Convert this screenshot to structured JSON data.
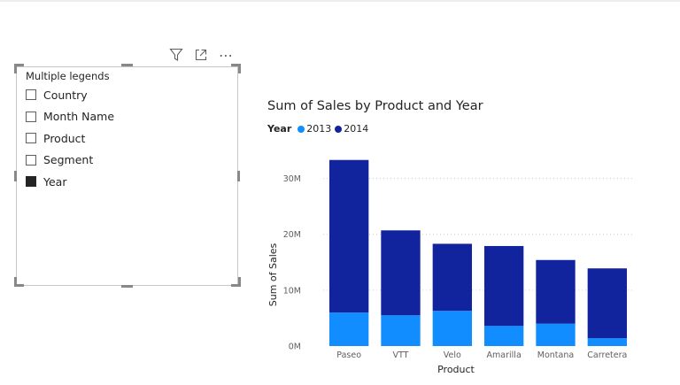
{
  "slicer": {
    "title": "Multiple legends",
    "toolbar": {
      "filter_icon": "filter-icon",
      "focus_icon": "focus-mode-icon",
      "more_icon": "more-options-icon",
      "more_glyph": "⋯"
    },
    "items": [
      {
        "label": "Country",
        "checked": false
      },
      {
        "label": "Month Name",
        "checked": false
      },
      {
        "label": "Product",
        "checked": false
      },
      {
        "label": "Segment",
        "checked": false
      },
      {
        "label": "Year",
        "checked": true
      }
    ]
  },
  "chart_data": {
    "type": "bar",
    "stacked": true,
    "title": "Sum of Sales by Product and Year",
    "legend_title": "Year",
    "legend_position": "top-left",
    "xlabel": "Product",
    "ylabel": "Sum of Sales",
    "categories": [
      "Paseo",
      "VTT",
      "Velo",
      "Amarilla",
      "Montana",
      "Carretera"
    ],
    "series": [
      {
        "name": "2013",
        "color": "#118dff",
        "values": [
          6.0,
          5.5,
          6.3,
          3.6,
          4.0,
          1.4
        ]
      },
      {
        "name": "2014",
        "color": "#12239e",
        "values": [
          27.3,
          15.2,
          12.0,
          14.3,
          11.4,
          12.5
        ]
      }
    ],
    "yticks": [
      0,
      10,
      20,
      30
    ],
    "ytick_labels": [
      "0M",
      "10M",
      "20M",
      "30M"
    ],
    "ylim": [
      0,
      35
    ],
    "grid": true
  }
}
